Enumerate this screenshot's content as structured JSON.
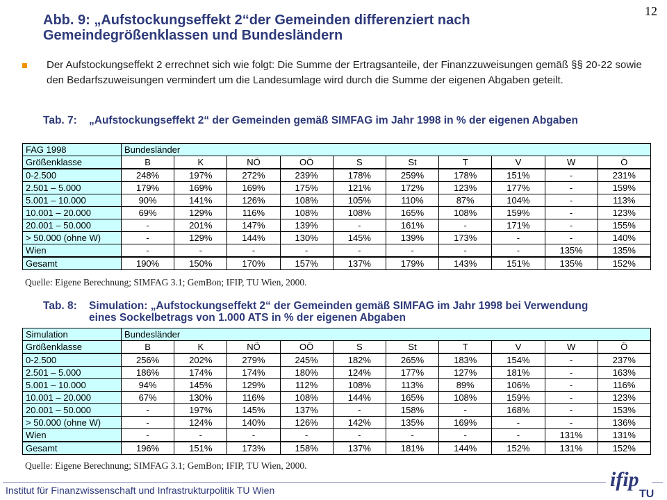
{
  "page_number": "12",
  "title": "Abb. 9: „Aufstockungseffekt 2“der Gemeinden differenziert nach Gemeindegrößenklassen und Bundesländern",
  "intro": "Der Aufstockungseffekt 2 errechnet sich wie folgt: Die Summe der Ertragsanteile, der Finanzzuweisungen gemäß §§ 20-22 sowie den Bedarfszuweisungen vermindert um die Landesumlage wird durch die Summe der eigenen Abgaben geteilt.",
  "colors": {
    "title": "#2e3a7a",
    "label_bg": "#ccffff",
    "bullet": "#f39200"
  },
  "tables": [
    {
      "caption_num": "Tab. 7:",
      "caption": "„Aufstockungseffekt 2“ der Gemeinden gemäß SIMFAG im Jahr 1998 in % der eigenen Abgaben",
      "corner_label": "FAG 1998",
      "group_label": "Bundesländer",
      "row_header_label": "Größenklasse",
      "columns": [
        "B",
        "K",
        "NÖ",
        "OÖ",
        "S",
        "St",
        "T",
        "V",
        "W",
        "Ö"
      ],
      "rows": [
        {
          "label": "0-2.500",
          "values": [
            "248%",
            "197%",
            "272%",
            "239%",
            "178%",
            "259%",
            "178%",
            "151%",
            "-",
            "231%"
          ]
        },
        {
          "label": "2.501 – 5.000",
          "values": [
            "179%",
            "169%",
            "169%",
            "175%",
            "121%",
            "172%",
            "123%",
            "177%",
            "-",
            "159%"
          ]
        },
        {
          "label": "5.001 – 10.000",
          "values": [
            "90%",
            "141%",
            "126%",
            "108%",
            "105%",
            "110%",
            "87%",
            "104%",
            "-",
            "113%"
          ]
        },
        {
          "label": "10.001 – 20.000",
          "values": [
            "69%",
            "129%",
            "116%",
            "108%",
            "108%",
            "165%",
            "108%",
            "159%",
            "-",
            "123%"
          ]
        },
        {
          "label": "20.001 – 50.000",
          "values": [
            "-",
            "201%",
            "147%",
            "139%",
            "-",
            "161%",
            "-",
            "171%",
            "-",
            "155%"
          ]
        },
        {
          "label": "> 50.000 (ohne W)",
          "values": [
            "-",
            "129%",
            "144%",
            "130%",
            "145%",
            "139%",
            "173%",
            "-",
            "-",
            "140%"
          ]
        },
        {
          "label": "Wien",
          "values": [
            "-",
            "-",
            "-",
            "-",
            "-",
            "-",
            "-",
            "-",
            "135%",
            "135%"
          ]
        }
      ],
      "total": {
        "label": "Gesamt",
        "values": [
          "190%",
          "150%",
          "170%",
          "157%",
          "137%",
          "179%",
          "143%",
          "151%",
          "135%",
          "152%"
        ]
      },
      "source": "Quelle: Eigene Berechnung; SIMFAG 3.1; GemBon; IFIP, TU Wien, 2000."
    },
    {
      "caption_num": "Tab. 8:",
      "caption": "Simulation: „Aufstockungseffekt 2“ der Gemeinden gemäß SIMFAG im Jahr 1998 bei Verwendung eines Sockelbetrags von 1.000 ATS in % der eigenen Abgaben",
      "corner_label": "Simulation",
      "group_label": "Bundesländer",
      "row_header_label": "Größenklasse",
      "columns": [
        "B",
        "K",
        "NÖ",
        "OÖ",
        "S",
        "St",
        "T",
        "V",
        "W",
        "Ö"
      ],
      "rows": [
        {
          "label": "0-2.500",
          "values": [
            "256%",
            "202%",
            "279%",
            "245%",
            "182%",
            "265%",
            "183%",
            "154%",
            "-",
            "237%"
          ]
        },
        {
          "label": "2.501 – 5.000",
          "values": [
            "186%",
            "174%",
            "174%",
            "180%",
            "124%",
            "177%",
            "127%",
            "181%",
            "-",
            "163%"
          ]
        },
        {
          "label": "5.001 – 10.000",
          "values": [
            "94%",
            "145%",
            "129%",
            "112%",
            "108%",
            "113%",
            "89%",
            "106%",
            "-",
            "116%"
          ]
        },
        {
          "label": "10.001 – 20.000",
          "values": [
            "67%",
            "130%",
            "116%",
            "108%",
            "144%",
            "165%",
            "108%",
            "159%",
            "-",
            "123%"
          ]
        },
        {
          "label": "20.001 – 50.000",
          "values": [
            "-",
            "197%",
            "145%",
            "137%",
            "-",
            "158%",
            "-",
            "168%",
            "-",
            "153%"
          ]
        },
        {
          "label": "> 50.000 (ohne W)",
          "values": [
            "-",
            "124%",
            "140%",
            "126%",
            "142%",
            "135%",
            "169%",
            "-",
            "-",
            "136%"
          ]
        },
        {
          "label": "Wien",
          "values": [
            "-",
            "-",
            "-",
            "-",
            "-",
            "-",
            "-",
            "-",
            "131%",
            "131%"
          ]
        }
      ],
      "total": {
        "label": "Gesamt",
        "values": [
          "196%",
          "151%",
          "173%",
          "158%",
          "137%",
          "181%",
          "144%",
          "152%",
          "131%",
          "152%"
        ]
      },
      "source": "Quelle: Eigene Berechnung; SIMFAG 3.1; GemBon; IFIP, TU Wien, 2000."
    }
  ],
  "footer": {
    "institute": "Institut für Finanzwissenschaft und Infrastrukturpolitik TU Wien",
    "logo_text": "ifip TU"
  }
}
